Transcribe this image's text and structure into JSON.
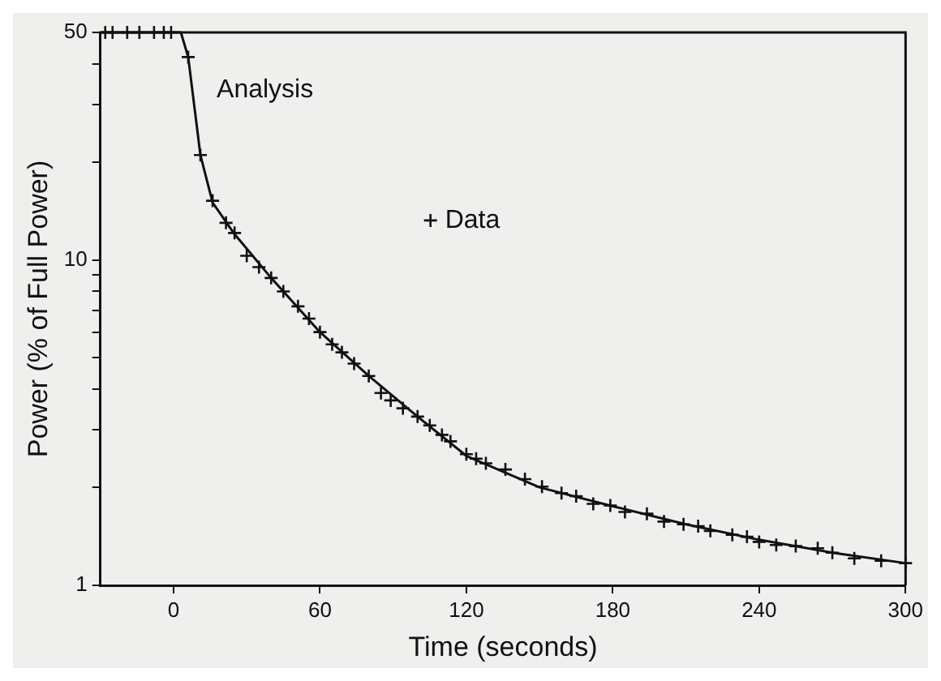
{
  "chart_data": {
    "type": "line",
    "xlabel": "Time (seconds)",
    "ylabel": "Power (% of Full Power)",
    "log": "y",
    "grid": false,
    "legend": "top",
    "xlim": [
      -30,
      300
    ],
    "ylim": [
      1,
      50
    ],
    "xticks": [
      0,
      60,
      120,
      180,
      240,
      300
    ],
    "yticks": [
      1,
      {
        "value": 2,
        "label": null
      },
      {
        "value": 3,
        "label": null
      },
      {
        "value": 4,
        "label": null
      },
      {
        "value": 5,
        "label": null
      },
      {
        "value": 6,
        "label": null
      },
      {
        "value": 7,
        "label": null
      },
      {
        "value": 8,
        "label": null
      },
      {
        "value": 9,
        "label": null
      },
      10,
      {
        "value": 20,
        "label": null
      },
      {
        "value": 30,
        "label": null
      },
      {
        "value": 40,
        "label": null
      },
      50
    ],
    "series": [
      {
        "name": "Analysis",
        "color": "#111111",
        "marker": "none",
        "line_style": "solid",
        "x": [
          -30,
          3,
          6,
          11,
          16,
          25,
          40,
          60,
          80,
          100,
          120,
          150,
          180,
          210,
          240,
          270,
          300
        ],
        "values": [
          50,
          50,
          42,
          21,
          15,
          12,
          8.8,
          6,
          4.4,
          3.3,
          2.5,
          2.0,
          1.75,
          1.54,
          1.38,
          1.26,
          1.17
        ]
      },
      {
        "name": "Data",
        "type": "scatter",
        "color": "#111111",
        "marker": "cross",
        "x": [
          -28,
          -25,
          -19,
          -14,
          -8,
          -4,
          -1,
          6,
          11,
          16,
          21.5,
          25,
          30,
          35,
          40,
          45,
          51,
          55.5,
          60,
          65,
          69,
          74,
          80,
          85,
          89,
          94,
          100,
          105,
          110,
          113.5,
          120,
          124,
          128,
          136,
          144,
          151,
          159,
          165,
          172,
          179,
          185,
          194,
          201,
          209,
          215,
          220,
          229,
          235,
          240,
          247,
          255,
          264,
          270,
          279,
          290,
          300
        ],
        "values": [
          50,
          50,
          50,
          50,
          50,
          50,
          50,
          42,
          21,
          15.2,
          13,
          12.1,
          10.3,
          9.5,
          8.8,
          8,
          7.2,
          6.6,
          6,
          5.5,
          5.2,
          4.8,
          4.4,
          3.9,
          3.7,
          3.5,
          3.3,
          3.1,
          2.9,
          2.77,
          2.53,
          2.45,
          2.37,
          2.27,
          2.12,
          2.01,
          1.92,
          1.88,
          1.78,
          1.76,
          1.68,
          1.66,
          1.57,
          1.54,
          1.52,
          1.47,
          1.43,
          1.41,
          1.36,
          1.33,
          1.32,
          1.3,
          1.26,
          1.21,
          1.19,
          1.17
        ]
      }
    ]
  }
}
